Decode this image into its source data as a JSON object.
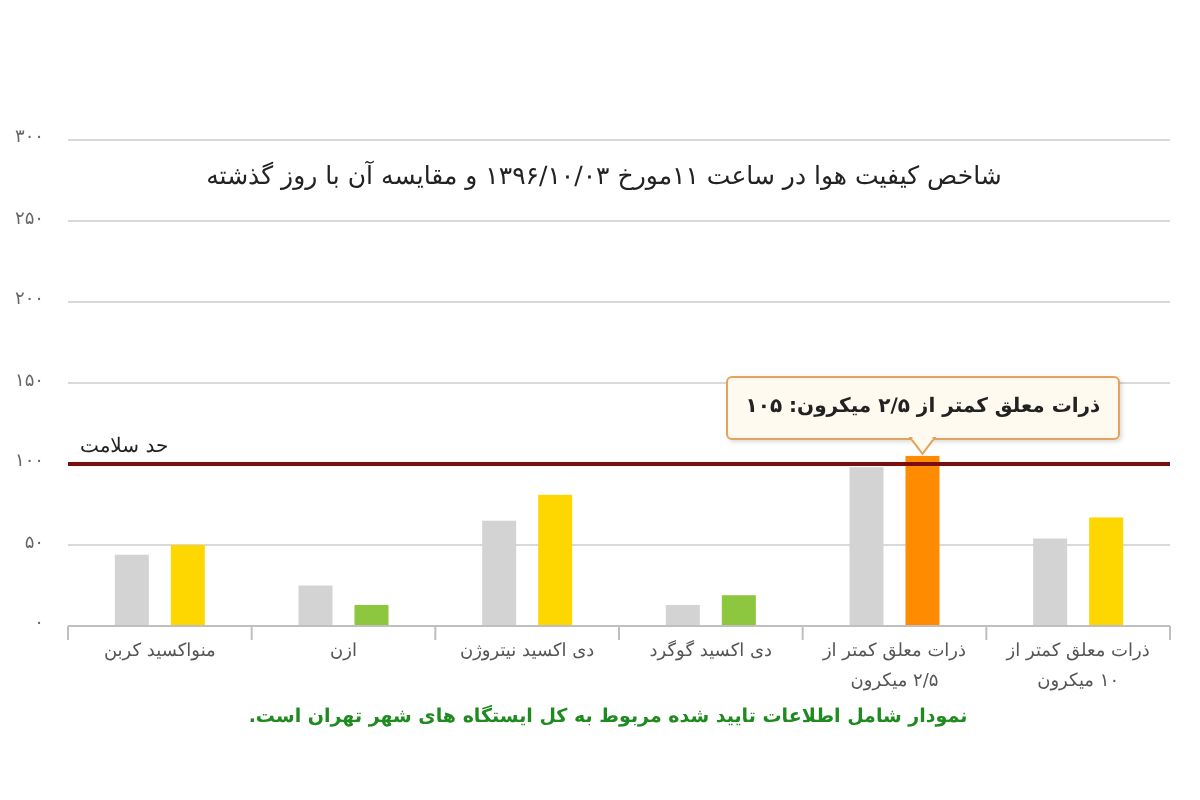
{
  "chart_data": {
    "type": "bar",
    "title": "شاخص کیفیت هوا در ساعت ۱۱مورخ ۱۳۹۶/۱۰/۰۳ و مقایسه آن با روز گذشته",
    "categories": [
      "منواکسید کربن",
      "ازن",
      "دی اکسید نیتروژن",
      "دی اکسید گوگرد",
      "ذرات معلق کمتر از ۲/۵ میکرون",
      "ذرات معلق کمتر از ۱۰ میکرون"
    ],
    "series": [
      {
        "color": "#d3d3d3",
        "values": [
          44,
          25,
          65,
          13,
          98,
          54
        ]
      },
      {
        "colors": [
          "#ffd700",
          "#8dc63f",
          "#ffd700",
          "#8dc63f",
          "#ff8c00",
          "#ffd700"
        ],
        "values": [
          50,
          13,
          81,
          19,
          105,
          67
        ]
      }
    ],
    "ylim": [
      0,
      300
    ],
    "yticks": [
      {
        "value": 0,
        "label": "۰"
      },
      {
        "value": 50,
        "label": "۵۰"
      },
      {
        "value": 100,
        "label": "۱۰۰"
      },
      {
        "value": 150,
        "label": "۱۵۰"
      },
      {
        "value": 200,
        "label": "۲۰۰"
      },
      {
        "value": 250,
        "label": "۲۵۰"
      },
      {
        "value": 300,
        "label": "۳۰۰"
      }
    ],
    "grid": "y",
    "ref_lines": [
      {
        "axis": "y",
        "value": 100,
        "label": "حد سلامت",
        "color": "#7b0d0d"
      }
    ],
    "annotations": [
      {
        "text": "ذرات معلق کمتر از ۲/۵ میکرون: ۱۰۵",
        "x": "ذرات معلق کمتر از ۲/۵ میکرون",
        "y": 105
      },
      "نمودار شامل اطلاعات تایید شده مربوط به کل ایستگاه های شهر تهران است."
    ]
  }
}
